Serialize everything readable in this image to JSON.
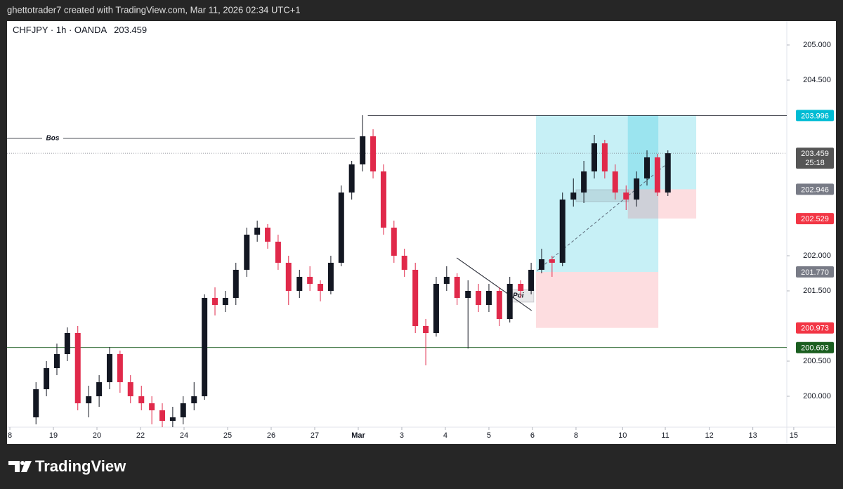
{
  "header": "ghettotrader7 created with TradingView.com, Mar 11, 2026 02:34 UTC+1",
  "footer": "TradingView",
  "chart_data": {
    "type": "candlestick",
    "symbol": "CHFJPY · 1h · OANDA",
    "last_price": 203.459,
    "countdown": "25:18",
    "up_color": "#131722",
    "down_color": "#e0294a",
    "x": [
      0.6,
      0.84,
      1.08,
      1.32,
      1.56,
      1.81,
      2.05,
      2.29,
      2.53,
      2.77,
      3.02,
      3.26,
      3.5,
      3.74,
      3.98,
      4.23,
      4.47,
      4.71,
      4.95,
      5.19,
      5.44,
      5.68,
      5.92,
      6.16,
      6.4,
      6.65,
      6.89,
      7.13,
      7.37,
      7.61,
      7.85,
      8.1,
      8.34,
      8.58,
      8.82,
      9.06,
      9.31,
      9.55,
      9.79,
      10.03,
      10.27,
      10.52,
      10.76,
      11.0,
      11.24,
      11.48,
      11.73,
      11.97,
      12.21,
      12.45,
      12.69,
      12.94,
      13.18,
      13.42,
      13.66,
      13.9,
      14.15,
      14.39,
      14.63,
      14.87,
      15.11
    ],
    "candles": [
      [
        199.7,
        200.2,
        199.6,
        200.1
      ],
      [
        200.1,
        200.5,
        200.0,
        200.4
      ],
      [
        200.4,
        200.75,
        200.3,
        200.6
      ],
      [
        200.6,
        200.98,
        200.5,
        200.9
      ],
      [
        200.9,
        201.0,
        199.8,
        199.9
      ],
      [
        199.9,
        200.15,
        199.7,
        200.0
      ],
      [
        200.0,
        200.3,
        199.85,
        200.2
      ],
      [
        200.2,
        200.7,
        200.1,
        200.6
      ],
      [
        200.6,
        200.65,
        200.05,
        200.2
      ],
      [
        200.2,
        200.3,
        199.9,
        200.0
      ],
      [
        200.0,
        200.15,
        199.8,
        199.9
      ],
      [
        199.9,
        200.0,
        199.6,
        199.8
      ],
      [
        199.8,
        199.9,
        199.56,
        199.65
      ],
      [
        199.65,
        199.85,
        199.56,
        199.7
      ],
      [
        199.7,
        200.0,
        199.6,
        199.9
      ],
      [
        199.9,
        200.2,
        199.8,
        200.0
      ],
      [
        200.0,
        201.45,
        199.95,
        201.4
      ],
      [
        201.4,
        201.55,
        201.15,
        201.3
      ],
      [
        201.3,
        201.5,
        201.2,
        201.4
      ],
      [
        201.4,
        201.9,
        201.3,
        201.8
      ],
      [
        201.8,
        202.4,
        201.7,
        202.3
      ],
      [
        202.3,
        202.5,
        202.2,
        202.4
      ],
      [
        202.4,
        202.45,
        202.1,
        202.2
      ],
      [
        202.2,
        202.3,
        201.8,
        201.9
      ],
      [
        201.9,
        202.0,
        201.3,
        201.5
      ],
      [
        201.5,
        201.8,
        201.4,
        201.7
      ],
      [
        201.7,
        201.85,
        201.5,
        201.6
      ],
      [
        201.6,
        201.65,
        201.35,
        201.5
      ],
      [
        201.5,
        202.0,
        201.45,
        201.9
      ],
      [
        201.9,
        203.0,
        201.85,
        202.9
      ],
      [
        202.9,
        203.35,
        202.8,
        203.3
      ],
      [
        203.3,
        204.0,
        203.2,
        203.7
      ],
      [
        203.7,
        203.8,
        203.1,
        203.2
      ],
      [
        203.2,
        203.3,
        202.3,
        202.4
      ],
      [
        202.4,
        202.5,
        201.9,
        202.0
      ],
      [
        202.0,
        202.1,
        201.7,
        201.8
      ],
      [
        201.8,
        201.9,
        200.9,
        201.0
      ],
      [
        201.0,
        201.1,
        200.44,
        200.9
      ],
      [
        200.9,
        201.7,
        200.85,
        201.6
      ],
      [
        201.6,
        201.85,
        201.5,
        201.7
      ],
      [
        201.7,
        201.75,
        201.3,
        201.4
      ],
      [
        201.4,
        201.65,
        200.68,
        201.5
      ],
      [
        201.5,
        201.6,
        201.2,
        201.3
      ],
      [
        201.3,
        201.6,
        201.2,
        201.5
      ],
      [
        201.5,
        201.55,
        201.0,
        201.1
      ],
      [
        201.1,
        201.7,
        201.05,
        201.6
      ],
      [
        201.6,
        201.65,
        201.4,
        201.5
      ],
      [
        201.5,
        201.9,
        201.45,
        201.8
      ],
      [
        201.8,
        202.1,
        201.75,
        201.95
      ],
      [
        201.95,
        202.0,
        201.7,
        201.9
      ],
      [
        201.9,
        202.9,
        201.85,
        202.8
      ],
      [
        202.8,
        203.1,
        202.7,
        202.9
      ],
      [
        202.9,
        203.35,
        202.75,
        203.2
      ],
      [
        203.2,
        203.72,
        203.1,
        203.6
      ],
      [
        203.6,
        203.65,
        203.1,
        203.2
      ],
      [
        203.2,
        203.3,
        202.8,
        202.9
      ],
      [
        202.9,
        203.0,
        202.65,
        202.8
      ],
      [
        202.8,
        203.2,
        202.7,
        203.1
      ],
      [
        203.1,
        203.5,
        203.0,
        203.4
      ],
      [
        203.4,
        203.45,
        202.85,
        202.9
      ],
      [
        202.9,
        203.5,
        202.85,
        203.459
      ]
    ],
    "xlim": [
      -0.065,
      17.84
    ],
    "ylim": [
      199.56,
      205.34
    ],
    "xticks": [
      {
        "value": 0,
        "label": "8"
      },
      {
        "value": 1,
        "label": "19"
      },
      {
        "value": 2,
        "label": "20"
      },
      {
        "value": 3,
        "label": "22"
      },
      {
        "value": 4,
        "label": "24"
      },
      {
        "value": 5,
        "label": "25"
      },
      {
        "value": 6,
        "label": "26"
      },
      {
        "value": 7,
        "label": "27"
      },
      {
        "value": 8,
        "label": "Mar"
      },
      {
        "value": 9,
        "label": "3"
      },
      {
        "value": 10,
        "label": "4"
      },
      {
        "value": 11,
        "label": "5"
      },
      {
        "value": 12,
        "label": "6"
      },
      {
        "value": 13,
        "label": "8"
      },
      {
        "value": 14.07,
        "label": "10"
      },
      {
        "value": 15.05,
        "label": "11"
      },
      {
        "value": 16.06,
        "label": "12"
      },
      {
        "value": 17.06,
        "label": "13"
      },
      {
        "value": 18,
        "label": "15"
      }
    ],
    "yticks": [
      {
        "value": 200,
        "label": "200.000"
      },
      {
        "value": 200.5,
        "label": "200.500"
      },
      {
        "value": 201.5,
        "label": "201.500"
      },
      {
        "value": 202,
        "label": "202.000"
      },
      {
        "value": 204.5,
        "label": "204.500"
      },
      {
        "value": 205,
        "label": "205.000"
      }
    ],
    "levels": [
      {
        "label": "Bos",
        "price": 203.67,
        "x": [
          -0.065,
          7.92
        ],
        "color": "#131722"
      },
      {
        "price": 203.996,
        "x": [
          8.22,
          17.84
        ],
        "color": "#131722"
      },
      {
        "price": 200.693,
        "x": [
          -0.065,
          17.84
        ],
        "color": "#1b5e20"
      }
    ],
    "trendline": {
      "x": [
        10.26,
        11.98
      ],
      "price": [
        201.97,
        201.22
      ],
      "color": "#131722"
    },
    "dashed": {
      "x": [
        12.11,
        15.11
      ],
      "price": [
        201.79,
        203.32
      ],
      "color": "#5d6a7a"
    },
    "zones": [
      {
        "label": "Poi",
        "x": [
          11.42,
          12.03
        ],
        "price": [
          201.52,
          201.34
        ]
      },
      {
        "x": [
          13.0,
          14.21
        ],
        "price": [
          202.94,
          202.77
        ]
      }
    ],
    "positions": [
      {
        "x": [
          12.08,
          14.89
        ],
        "entry": {
          "value": 201.77,
          "label": "201.770"
        },
        "target": 203.996,
        "stop": 200.973
      },
      {
        "x": [
          14.19,
          15.76
        ],
        "entry": 202.946,
        "target": 203.996,
        "stop": 202.529
      }
    ],
    "price_labels": [
      {
        "price": 203.996,
        "color": "#00bcd4"
      },
      {
        "price": 203.459,
        "color": "#555555"
      },
      {
        "price": 202.946,
        "color": "#787b86"
      },
      {
        "price": 202.529,
        "color": "#f23645"
      },
      {
        "price": {
          "value": 201.77,
          "label": "201.770"
        },
        "color": "#787b86"
      },
      {
        "price": 200.973,
        "color": "#f23645"
      },
      {
        "price": 200.693,
        "color": "#1b5e20"
      }
    ]
  }
}
